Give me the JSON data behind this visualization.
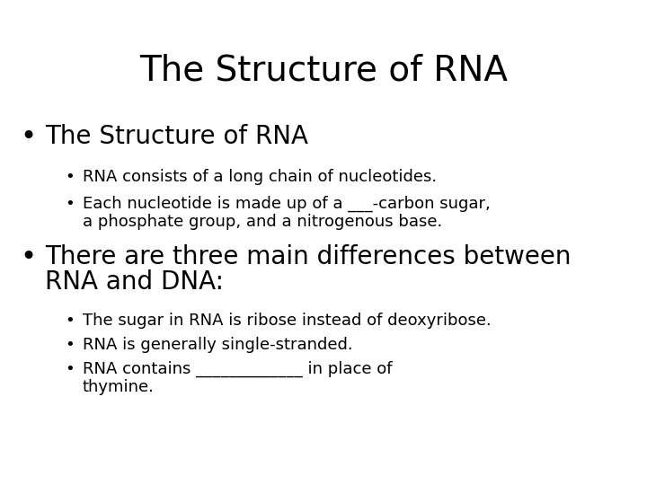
{
  "title": "The Structure of RNA",
  "background_color": "#ffffff",
  "text_color": "#000000",
  "title_fontsize": 28,
  "title_font": "DejaVu Sans",
  "bullet1_text": "The Structure of RNA",
  "bullet1_fontsize": 20,
  "sub_bullet1a": "RNA consists of a long chain of nucleotides.",
  "sub_bullet1b_line1": "Each nucleotide is made up of a ___-carbon sugar,",
  "sub_bullet1b_line2": "a phosphate group, and a nitrogenous base.",
  "sub_bullet_fontsize": 13,
  "bullet2_line1": "There are three main differences between",
  "bullet2_line2": "RNA and DNA:",
  "bullet2_fontsize": 20,
  "sub_bullet2a": "The sugar in RNA is ribose instead of deoxyribose.",
  "sub_bullet2b": "RNA is generally single-stranded.",
  "sub_bullet2c_line1": "RNA contains _____________ in place of",
  "sub_bullet2c_line2": "thymine.",
  "bullet_char": "•"
}
